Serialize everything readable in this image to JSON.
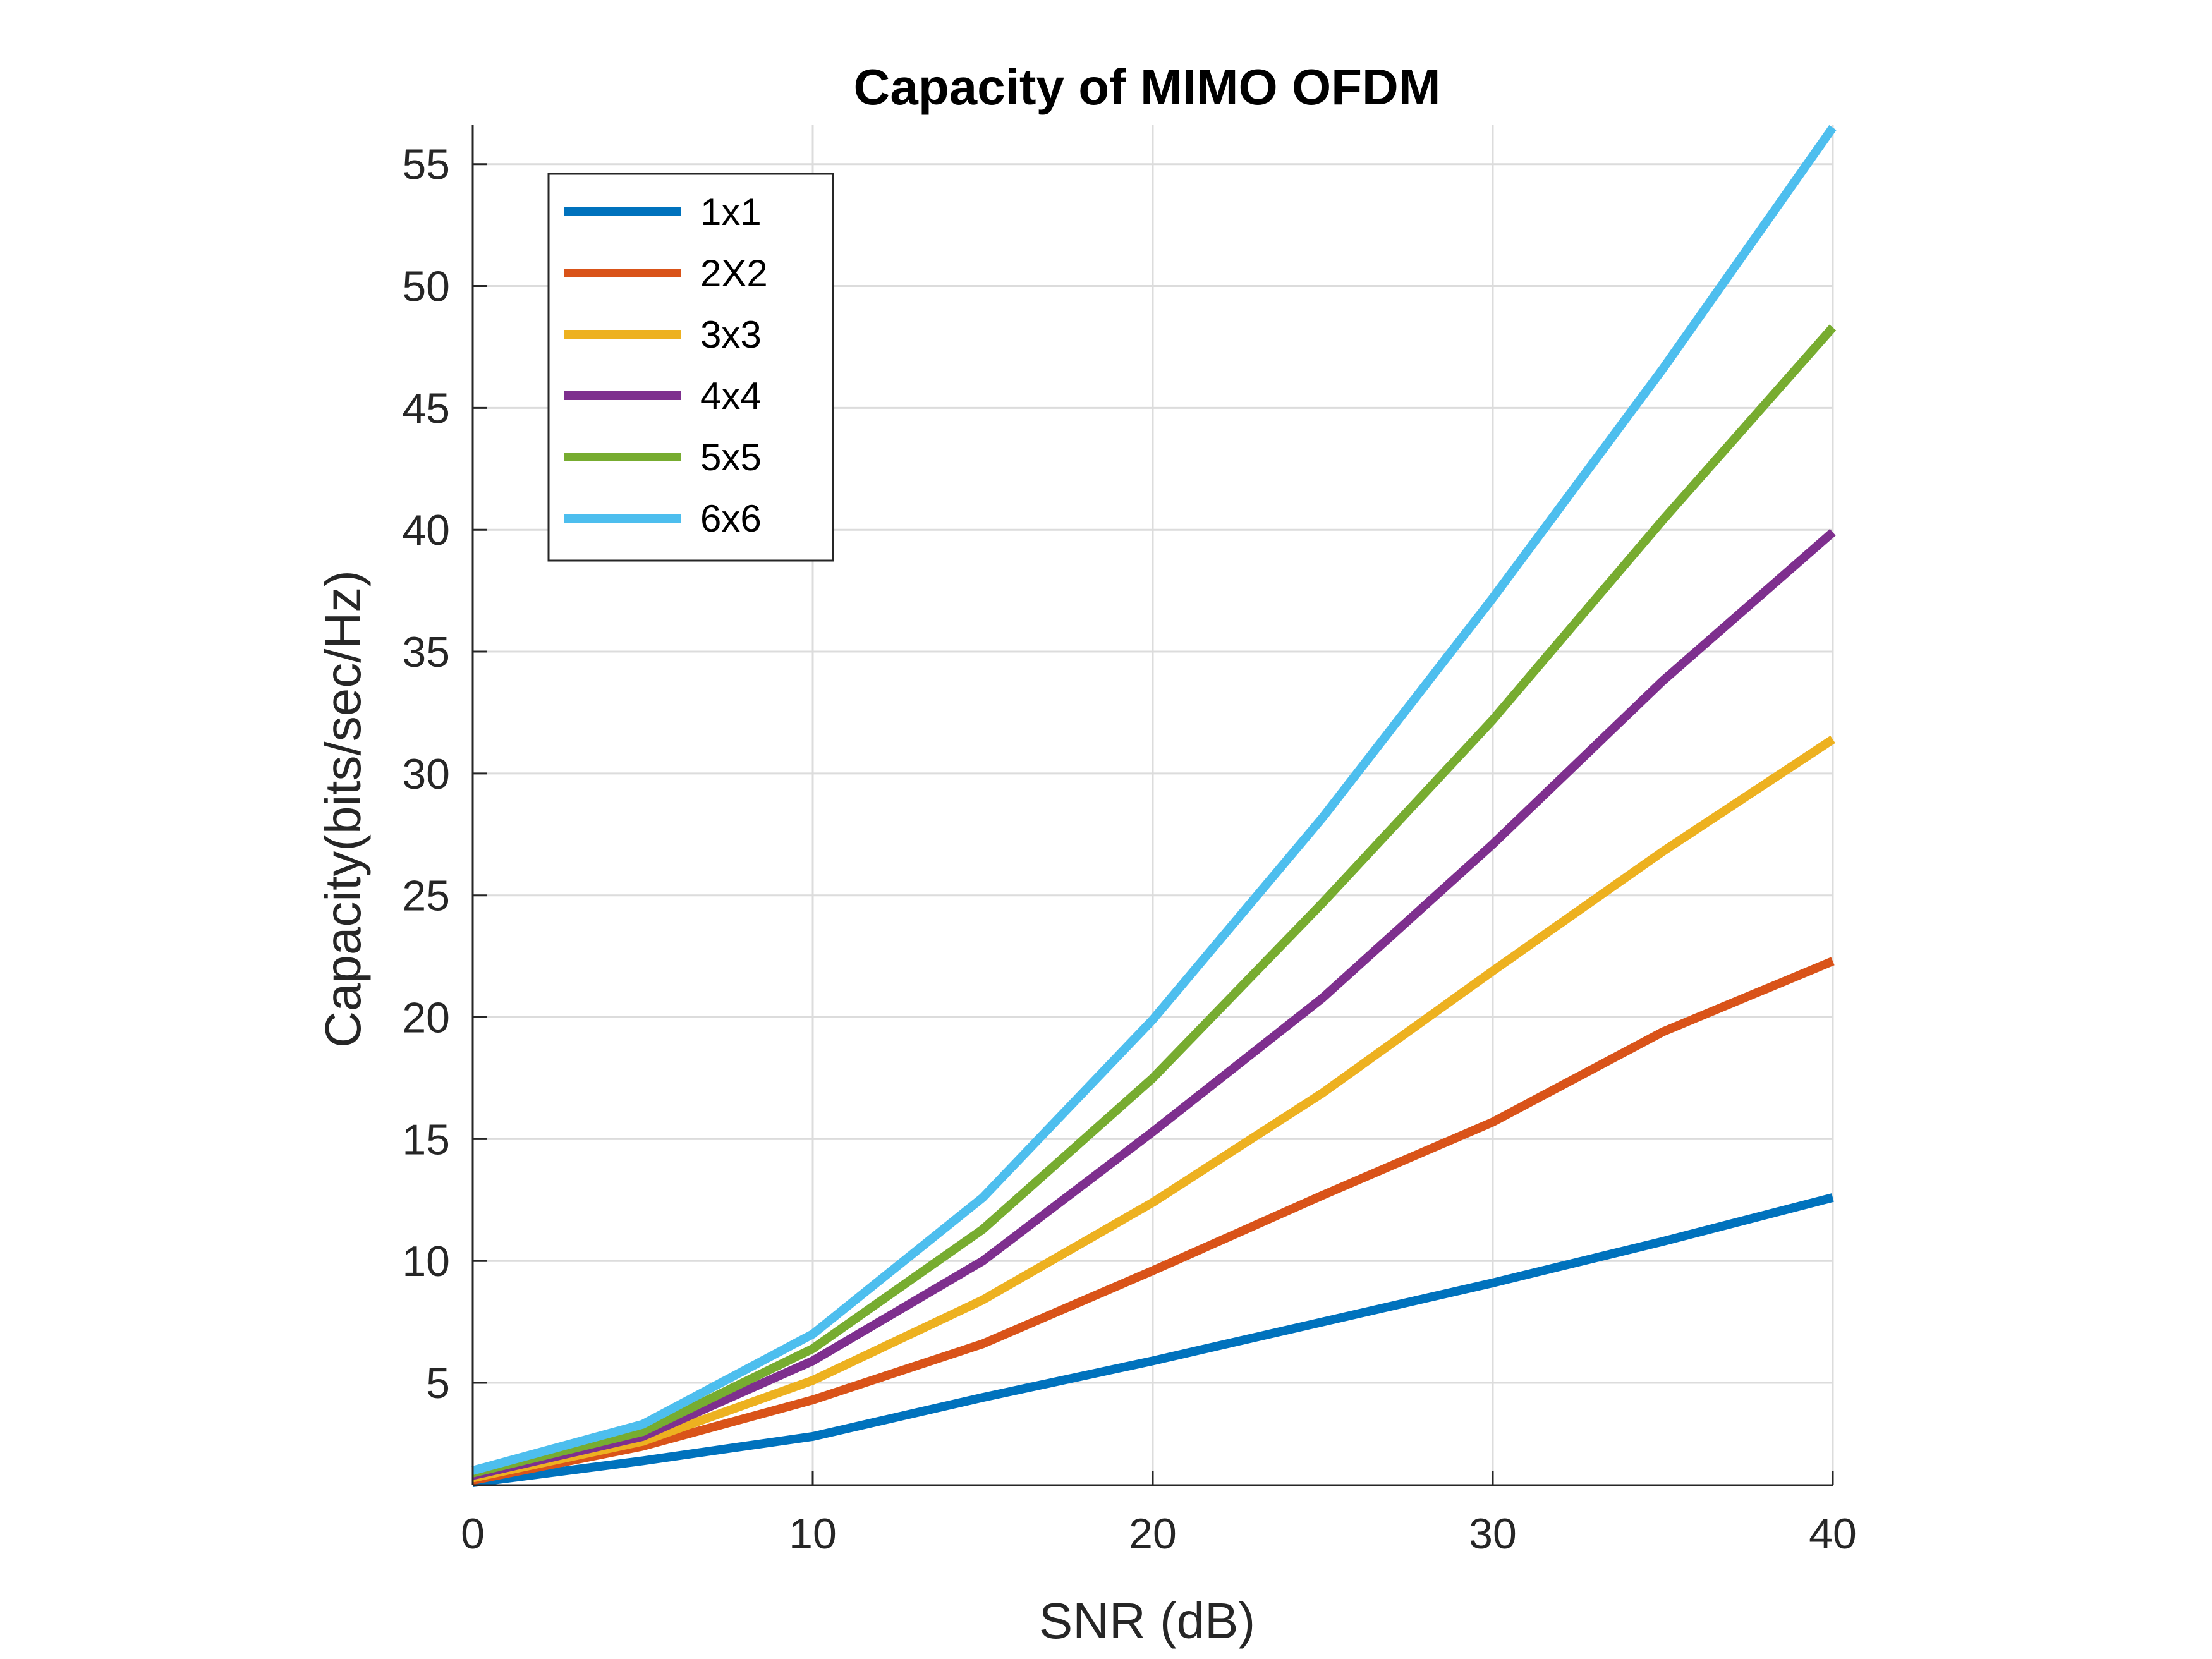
{
  "chart_data": {
    "type": "line",
    "title": "Capacity of MIMO OFDM",
    "xlabel": "SNR (dB)",
    "ylabel": "Capacity(bits/sec/Hz)",
    "xlim": [
      0,
      40
    ],
    "ylim": [
      0.8,
      56.6
    ],
    "xticks": [
      0,
      10,
      20,
      30,
      40
    ],
    "yticks": [
      5,
      10,
      15,
      20,
      25,
      30,
      35,
      40,
      45,
      50,
      55
    ],
    "grid": true,
    "legend_position": "top-left",
    "x": [
      0,
      5,
      10,
      15,
      20,
      25,
      30,
      35,
      40
    ],
    "series": [
      {
        "name": "1x1",
        "color": "#0072BD",
        "values": [
          0.9,
          1.8,
          2.8,
          4.4,
          5.9,
          7.5,
          9.1,
          10.8,
          12.6
        ]
      },
      {
        "name": "2X2",
        "color": "#D95319",
        "values": [
          1.0,
          2.4,
          4.3,
          6.6,
          9.6,
          12.7,
          15.7,
          19.4,
          22.3
        ]
      },
      {
        "name": "3x3",
        "color": "#EDB120",
        "values": [
          1.1,
          2.6,
          5.1,
          8.4,
          12.4,
          16.9,
          21.9,
          26.8,
          31.4
        ]
      },
      {
        "name": "4x4",
        "color": "#7E2F8E",
        "values": [
          1.2,
          2.8,
          5.9,
          10.0,
          15.3,
          20.8,
          27.1,
          33.8,
          39.9
        ]
      },
      {
        "name": "5x5",
        "color": "#77AC30",
        "values": [
          1.3,
          3.0,
          6.4,
          11.3,
          17.5,
          24.7,
          32.2,
          40.4,
          48.3
        ]
      },
      {
        "name": "6x6",
        "color": "#4DBEEE",
        "values": [
          1.4,
          3.3,
          7.0,
          12.6,
          19.9,
          28.2,
          37.2,
          46.6,
          56.5
        ]
      }
    ]
  }
}
